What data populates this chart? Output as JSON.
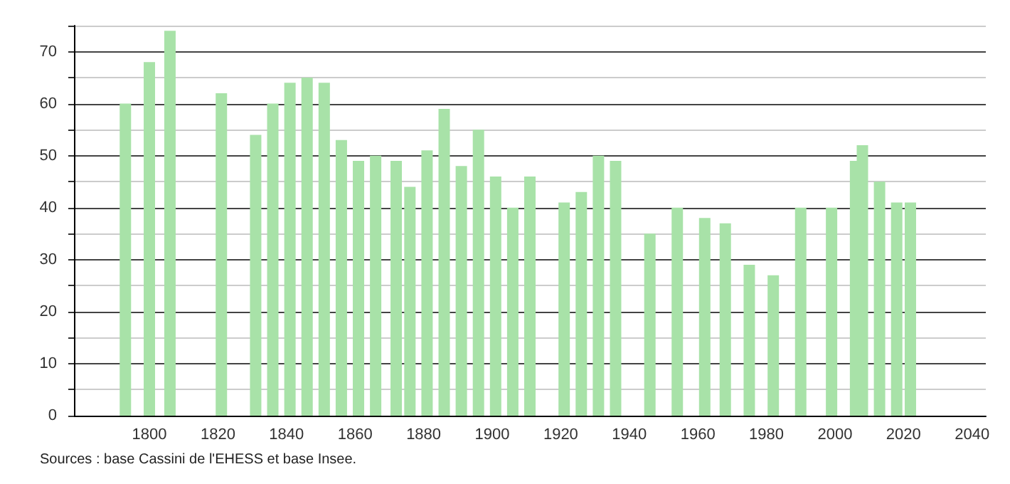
{
  "chart_data": {
    "type": "bar",
    "color": "#a8e2a8",
    "x": [
      1793,
      1800,
      1806,
      1821,
      1831,
      1836,
      1841,
      1846,
      1851,
      1856,
      1861,
      1866,
      1872,
      1876,
      1881,
      1886,
      1891,
      1896,
      1901,
      1906,
      1911,
      1921,
      1926,
      1931,
      1936,
      1946,
      1954,
      1962,
      1968,
      1975,
      1982,
      1990,
      1999,
      2006,
      2008,
      2013,
      2018,
      2022
    ],
    "values": [
      60,
      68,
      74,
      62,
      54,
      60,
      64,
      65,
      64,
      53,
      49,
      50,
      49,
      44,
      51,
      59,
      48,
      55,
      46,
      40,
      46,
      41,
      43,
      50,
      49,
      35,
      40,
      38,
      37,
      29,
      27,
      40,
      40,
      49,
      52,
      45,
      41,
      41
    ],
    "xlim": [
      1778,
      2044
    ],
    "xticks": [
      1800,
      1820,
      1840,
      1860,
      1880,
      1900,
      1920,
      1940,
      1960,
      1980,
      2000,
      2020,
      2040
    ],
    "ylim": [
      0,
      75
    ],
    "yticks": [
      0,
      {
        "value": 5,
        "label": null
      },
      10,
      {
        "value": 15,
        "label": null
      },
      20,
      {
        "value": 25,
        "label": null
      },
      30,
      {
        "value": 35,
        "label": null
      },
      40,
      {
        "value": 45,
        "label": null
      },
      50,
      {
        "value": 55,
        "label": null
      },
      60,
      {
        "value": 65,
        "label": null
      },
      70,
      {
        "value": 75,
        "label": null
      }
    ],
    "grid": "y",
    "annotations": [
      "Sources : base Cassini de l'EHESS et base Insee."
    ]
  }
}
